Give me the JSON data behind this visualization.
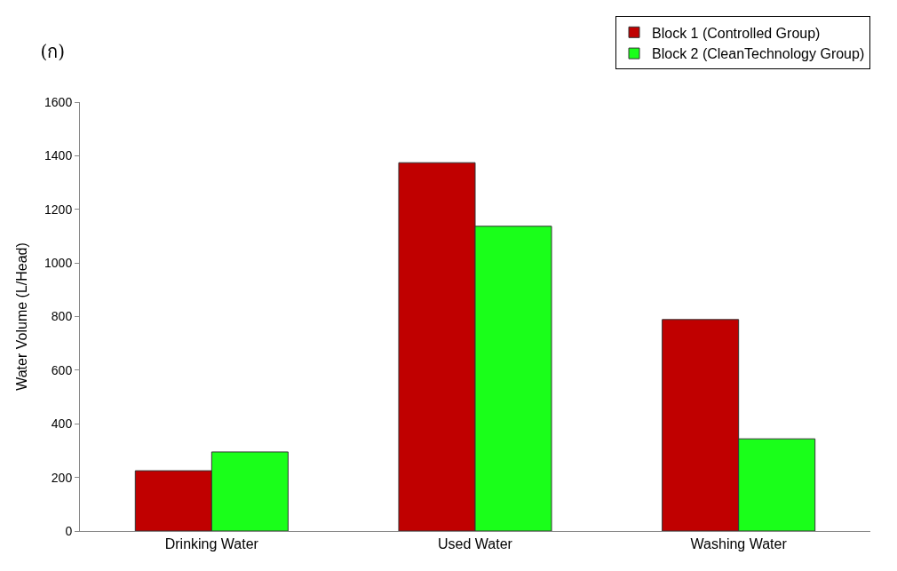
{
  "chart_data": {
    "type": "bar",
    "title": "(ก)",
    "ylabel": "Water Volume (L/Head)",
    "categories": [
      "Drinking Water",
      "Used Water",
      "Washing Water"
    ],
    "series": [
      {
        "name": "Block 1 (Controlled Group)",
        "color": "#c00000",
        "values": [
          225,
          1374,
          789
        ]
      },
      {
        "name": "Block 2 (CleanTechnology Group)",
        "color": "#1aff1a",
        "values": [
          295,
          1137,
          344
        ]
      }
    ],
    "ylim": [
      0,
      1600
    ],
    "yticks": [
      0,
      200,
      400,
      600,
      800,
      1000,
      1200,
      1400,
      1600
    ],
    "legend": "top right"
  }
}
